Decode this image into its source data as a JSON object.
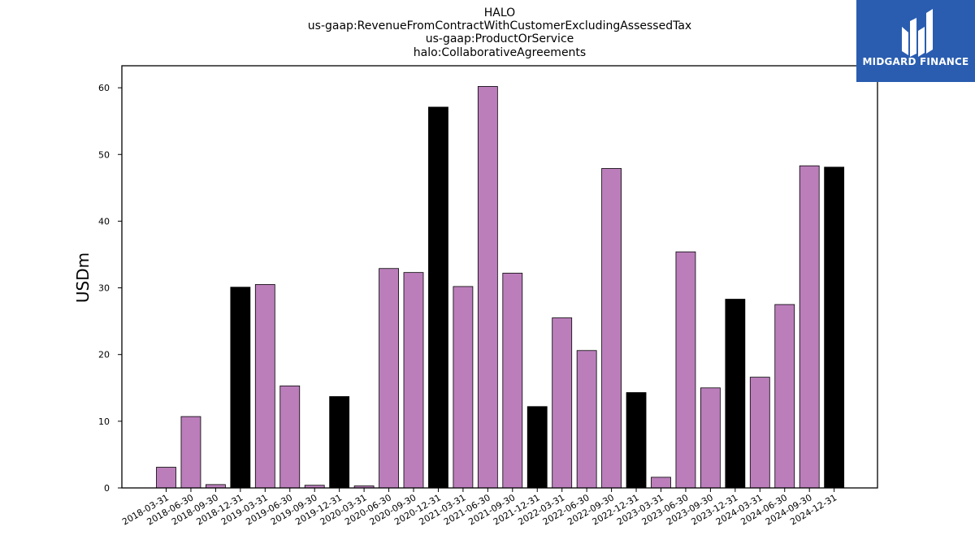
{
  "chart_data": {
    "type": "bar",
    "title_lines": [
      "HALO",
      "us-gaap:RevenueFromContractWithCustomerExcludingAssessedTax",
      "us-gaap:ProductOrService",
      "halo:CollaborativeAgreements"
    ],
    "ylabel": "USDm",
    "xlabel": "",
    "ylim": [
      0,
      63.3
    ],
    "yticks": [
      0,
      10,
      20,
      30,
      40,
      50,
      60
    ],
    "grid": false,
    "categories": [
      "2018-03-31",
      "2018-06-30",
      "2018-09-30",
      "2018-12-31",
      "2019-03-31",
      "2019-06-30",
      "2019-09-30",
      "2019-12-31",
      "2020-03-31",
      "2020-06-30",
      "2020-09-30",
      "2020-12-31",
      "2021-03-31",
      "2021-06-30",
      "2021-09-30",
      "2021-12-31",
      "2022-03-31",
      "2022-06-30",
      "2022-09-30",
      "2022-12-31",
      "2023-03-31",
      "2023-06-30",
      "2023-09-30",
      "2023-12-31",
      "2024-03-31",
      "2024-06-30",
      "2024-09-30",
      "2024-12-31"
    ],
    "values": [
      3.1,
      10.7,
      0.5,
      30.1,
      30.5,
      15.3,
      0.4,
      13.7,
      0.3,
      32.9,
      32.3,
      57.1,
      30.2,
      60.2,
      32.2,
      12.2,
      25.5,
      20.6,
      47.9,
      14.3,
      1.6,
      35.4,
      15.0,
      28.3,
      16.6,
      27.5,
      48.3,
      48.1
    ],
    "bar_colors": {
      "quarter": "#bb7ebb",
      "year_end": "#000000"
    },
    "year_end_flags": [
      false,
      false,
      false,
      true,
      false,
      false,
      false,
      true,
      false,
      false,
      false,
      true,
      false,
      false,
      false,
      true,
      false,
      false,
      false,
      true,
      false,
      false,
      false,
      true,
      false,
      false,
      false,
      true
    ]
  },
  "logo": {
    "text": "MIDGARD FINANCE",
    "bg_color": "#2a5db0"
  }
}
